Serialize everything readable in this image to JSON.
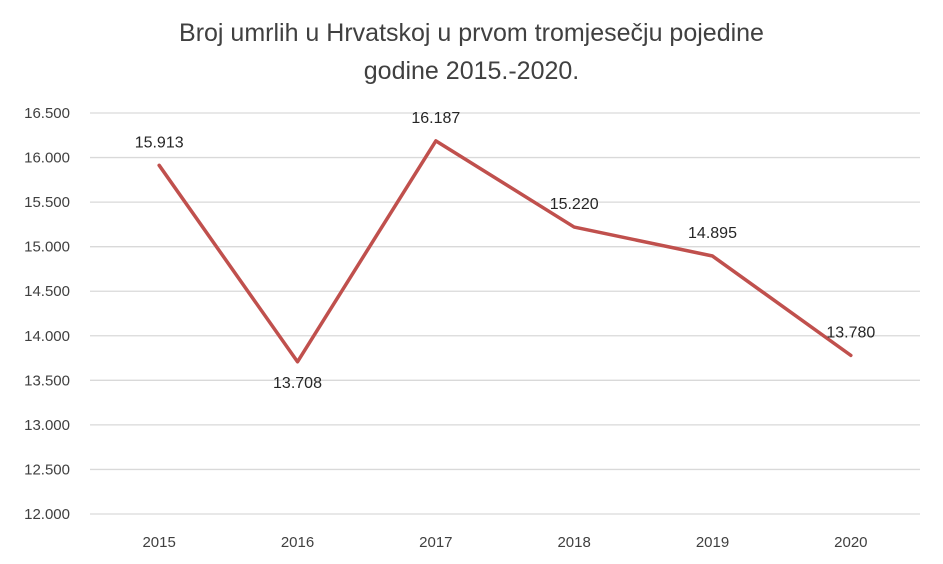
{
  "chart_data": {
    "type": "line",
    "title_lines": [
      "Broj umrlih u Hrvatskoj u prvom tromjesečju pojedine",
      "godine 2015.-2020."
    ],
    "categories": [
      "2015",
      "2016",
      "2017",
      "2018",
      "2019",
      "2020"
    ],
    "series": [
      {
        "values": [
          15913,
          13708,
          16187,
          15220,
          14895,
          13780
        ],
        "labels": [
          "15.913",
          "13.708",
          "16.187",
          "15.220",
          "14.895",
          "13.780"
        ],
        "color": "#c0504d"
      }
    ],
    "ylim": [
      12000,
      16500
    ],
    "yticks": [
      12000,
      12500,
      13000,
      13500,
      14000,
      14500,
      15000,
      15500,
      16000,
      16500
    ],
    "ytick_labels": [
      "12.000",
      "12.500",
      "13.000",
      "13.500",
      "14.000",
      "14.500",
      "15.000",
      "15.500",
      "16.000",
      "16.500"
    ],
    "grid": true,
    "gridline_color": "#d9d9d9",
    "legend": "none"
  }
}
